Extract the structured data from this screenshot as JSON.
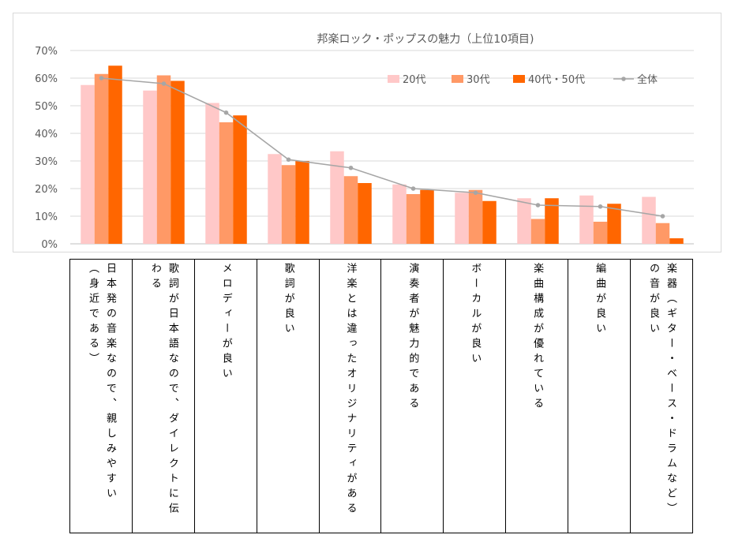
{
  "chart_data": {
    "type": "bar",
    "title": "邦楽ロック・ポップスの魅力（上位10項目)",
    "xlabel": "",
    "ylabel": "",
    "ylim": [
      0,
      70
    ],
    "yticks": [
      "0%",
      "10%",
      "20%",
      "30%",
      "40%",
      "50%",
      "60%",
      "70%"
    ],
    "grid": true,
    "legend_position": "top-right",
    "categories": [
      "日本発の音楽なので、親しみやすい（身近である）",
      "歌詞が日本語なので、ダイレクトに伝わる",
      "メロディーが良い",
      "歌詞が良い",
      "洋楽とは違ったオリジナリティがある",
      "演奏者が魅力的である",
      "ボーカルが良い",
      "楽曲構成が優れている",
      "編曲が良い",
      "楽器（ギター・ベース・ドラムなど）の音が良い"
    ],
    "series": [
      {
        "name": "20代",
        "type": "bar",
        "color": "#ffc8c8",
        "values": [
          57.5,
          55.5,
          51,
          32.5,
          33.5,
          21.5,
          18.5,
          16.5,
          17.5,
          17
        ]
      },
      {
        "name": "30代",
        "type": "bar",
        "color": "#ff9966",
        "values": [
          61.5,
          61,
          44,
          28.5,
          24.5,
          18,
          19.5,
          9,
          8,
          7.5
        ]
      },
      {
        "name": "40代・50代",
        "type": "bar",
        "color": "#ff6600",
        "values": [
          64.5,
          59,
          46.5,
          30,
          22,
          19.5,
          15.5,
          16.5,
          14.5,
          2
        ]
      },
      {
        "name": "全体",
        "type": "line",
        "color": "#a6a6a6",
        "values": [
          60,
          58,
          47.5,
          30.5,
          27.5,
          20,
          18.5,
          14,
          13.5,
          10
        ]
      }
    ]
  }
}
